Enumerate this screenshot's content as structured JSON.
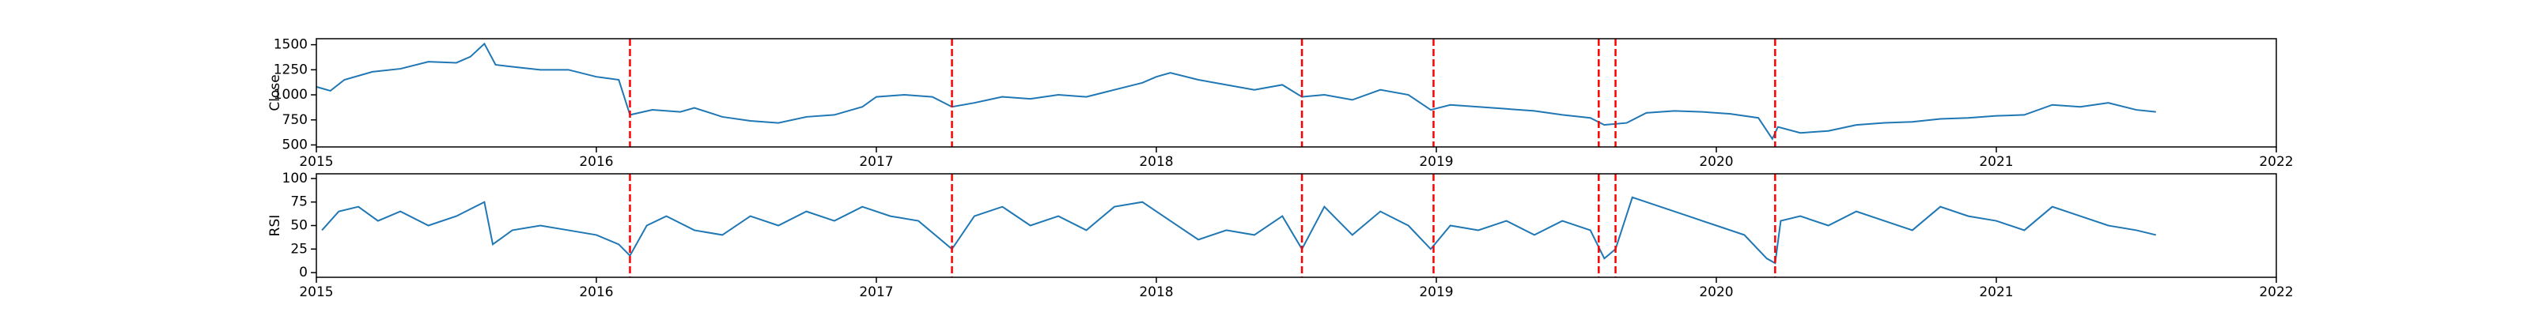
{
  "chart_data": [
    {
      "type": "line",
      "ylabel": "Close",
      "color": "#1f77b4",
      "x": [
        2015.0,
        2015.05,
        2015.1,
        2015.2,
        2015.3,
        2015.4,
        2015.5,
        2015.55,
        2015.6,
        2015.64,
        2015.7,
        2015.8,
        2015.9,
        2016.0,
        2016.08,
        2016.12,
        2016.2,
        2016.3,
        2016.35,
        2016.45,
        2016.55,
        2016.65,
        2016.75,
        2016.85,
        2016.95,
        2017.0,
        2017.1,
        2017.2,
        2017.27,
        2017.35,
        2017.45,
        2017.55,
        2017.65,
        2017.75,
        2017.85,
        2017.95,
        2018.0,
        2018.05,
        2018.15,
        2018.25,
        2018.35,
        2018.45,
        2018.52,
        2018.6,
        2018.7,
        2018.8,
        2018.9,
        2018.98,
        2019.05,
        2019.15,
        2019.25,
        2019.35,
        2019.45,
        2019.55,
        2019.6,
        2019.68,
        2019.75,
        2019.85,
        2019.95,
        2020.05,
        2020.15,
        2020.2,
        2020.22,
        2020.3,
        2020.4,
        2020.5,
        2020.6,
        2020.7,
        2020.8,
        2020.9,
        2021.0,
        2021.1,
        2021.2,
        2021.3,
        2021.4,
        2021.5,
        2021.57
      ],
      "values": [
        1080,
        1040,
        1150,
        1230,
        1260,
        1330,
        1320,
        1380,
        1510,
        1300,
        1280,
        1250,
        1250,
        1180,
        1150,
        800,
        850,
        830,
        870,
        780,
        740,
        720,
        780,
        800,
        880,
        980,
        1000,
        980,
        880,
        920,
        980,
        960,
        1000,
        980,
        1050,
        1120,
        1180,
        1220,
        1150,
        1100,
        1050,
        1100,
        980,
        1000,
        950,
        1050,
        1000,
        850,
        900,
        880,
        860,
        840,
        800,
        770,
        700,
        720,
        820,
        840,
        830,
        810,
        770,
        560,
        680,
        620,
        640,
        700,
        720,
        730,
        760,
        770,
        790,
        800,
        900,
        880,
        920,
        850,
        830
      ],
      "xlim": [
        2015,
        2022
      ],
      "xticks": [
        2015,
        2016,
        2017,
        2018,
        2019,
        2020,
        2021,
        2022
      ],
      "ylim": [
        480,
        1560
      ],
      "yticks": [
        500,
        750,
        1000,
        1250,
        1500
      ],
      "vlines": [
        2016.12,
        2017.27,
        2018.52,
        2018.99,
        2019.58,
        2019.64,
        2020.21
      ],
      "vline_color": "red"
    },
    {
      "type": "line",
      "ylabel": "RSI",
      "color": "#1f77b4",
      "x": [
        2015.02,
        2015.08,
        2015.15,
        2015.22,
        2015.3,
        2015.4,
        2015.5,
        2015.6,
        2015.63,
        2015.7,
        2015.8,
        2015.9,
        2016.0,
        2016.08,
        2016.12,
        2016.18,
        2016.25,
        2016.35,
        2016.45,
        2016.55,
        2016.65,
        2016.75,
        2016.85,
        2016.95,
        2017.05,
        2017.15,
        2017.27,
        2017.35,
        2017.45,
        2017.55,
        2017.65,
        2017.75,
        2017.85,
        2017.95,
        2018.05,
        2018.15,
        2018.25,
        2018.35,
        2018.45,
        2018.52,
        2018.6,
        2018.7,
        2018.8,
        2018.9,
        2018.98,
        2019.05,
        2019.15,
        2019.25,
        2019.35,
        2019.45,
        2019.55,
        2019.6,
        2019.64,
        2019.7,
        2019.8,
        2019.9,
        2020.0,
        2020.1,
        2020.18,
        2020.21,
        2020.23,
        2020.3,
        2020.4,
        2020.5,
        2020.6,
        2020.7,
        2020.8,
        2020.9,
        2021.0,
        2021.1,
        2021.2,
        2021.3,
        2021.4,
        2021.5,
        2021.57
      ],
      "values": [
        45,
        65,
        70,
        55,
        65,
        50,
        60,
        75,
        30,
        45,
        50,
        45,
        40,
        30,
        18,
        50,
        60,
        45,
        40,
        60,
        50,
        65,
        55,
        70,
        60,
        55,
        25,
        60,
        70,
        50,
        60,
        45,
        70,
        75,
        55,
        35,
        45,
        40,
        60,
        25,
        70,
        40,
        65,
        50,
        25,
        50,
        45,
        55,
        40,
        55,
        45,
        15,
        25,
        80,
        70,
        60,
        50,
        40,
        15,
        10,
        55,
        60,
        50,
        65,
        55,
        45,
        70,
        60,
        55,
        45,
        70,
        60,
        50,
        45,
        40
      ],
      "xlim": [
        2015,
        2022
      ],
      "xticks": [
        2015,
        2016,
        2017,
        2018,
        2019,
        2020,
        2021,
        2022
      ],
      "ylim": [
        -5,
        105
      ],
      "yticks": [
        0,
        25,
        50,
        75,
        100
      ],
      "vlines": [
        2016.12,
        2017.27,
        2018.52,
        2018.99,
        2019.58,
        2019.64,
        2020.21
      ],
      "vline_color": "red"
    }
  ]
}
